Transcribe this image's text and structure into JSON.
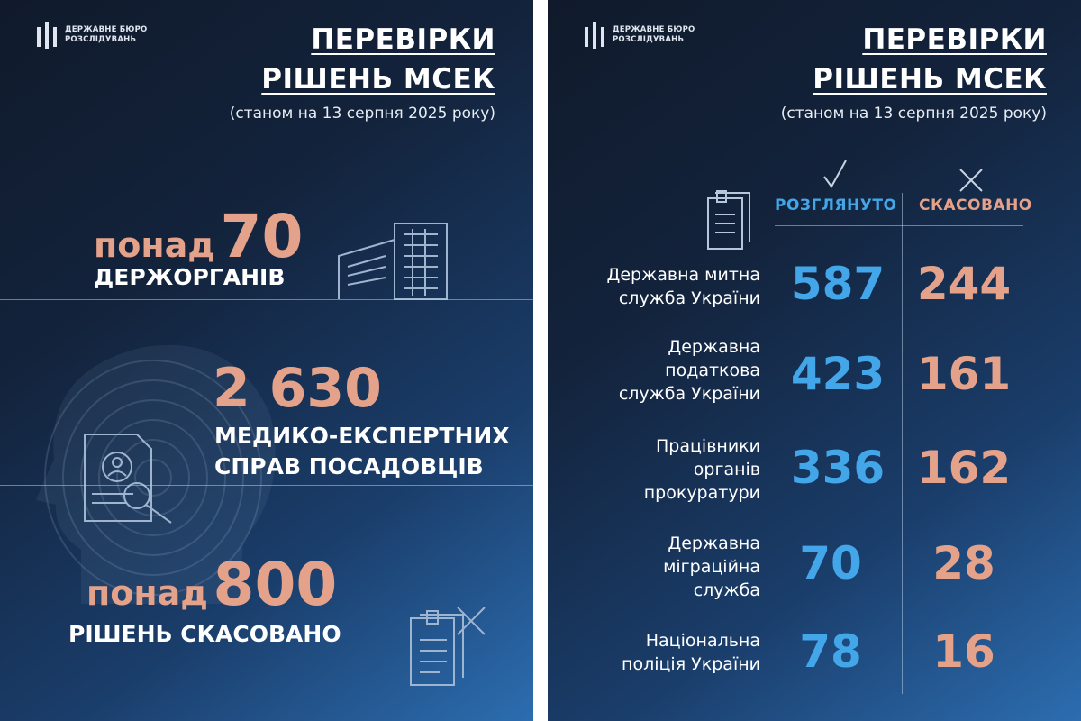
{
  "brand": {
    "line1": "ДЕРЖАВНЕ БЮРО",
    "line2": "РОЗСЛІДУВАНЬ"
  },
  "header": {
    "title_line1": "ПЕРЕВІРКИ",
    "title_line2": "РІШЕНЬ МСЕК",
    "subtitle": "(станом на 13 серпня 2025 року)"
  },
  "left": {
    "stat1": {
      "prefix": "понад",
      "value": "70",
      "caption": "ДЕРЖОРГАНІВ"
    },
    "stat2": {
      "value": "2 630",
      "caption_line1": "МЕДИКО-ЕКСПЕРТНИХ",
      "caption_line2": "СПРАВ ПОСАДОВЦІВ"
    },
    "stat3": {
      "prefix": "понад",
      "value": "800",
      "caption": "РІШЕНЬ СКАСОВАНО"
    }
  },
  "right": {
    "col_reviewed": "РОЗГЛЯНУТО",
    "col_cancelled": "СКАСОВАНО",
    "rows": [
      {
        "label": [
          "Державна митна",
          "служба України"
        ],
        "reviewed": "587",
        "cancelled": "244"
      },
      {
        "label": [
          "Державна",
          "податкова",
          "служба України"
        ],
        "reviewed": "423",
        "cancelled": "161"
      },
      {
        "label": [
          "Працівники",
          "органів",
          "прокуратури"
        ],
        "reviewed": "336",
        "cancelled": "162"
      },
      {
        "label": [
          "Державна",
          "міграційна",
          "служба"
        ],
        "reviewed": "70",
        "cancelled": "28"
      },
      {
        "label": [
          "Національна",
          "поліція України"
        ],
        "reviewed": "78",
        "cancelled": "16"
      }
    ]
  },
  "icons": [
    "logo-icon",
    "building-icon",
    "fingerprint-head-icon",
    "document-search-icon",
    "document-cancel-icon",
    "document-icon",
    "checkmark-icon",
    "cross-icon"
  ],
  "colors": {
    "accent_salmon": "#e5a28a",
    "accent_blue": "#43a6e8",
    "background": "#13233c"
  }
}
